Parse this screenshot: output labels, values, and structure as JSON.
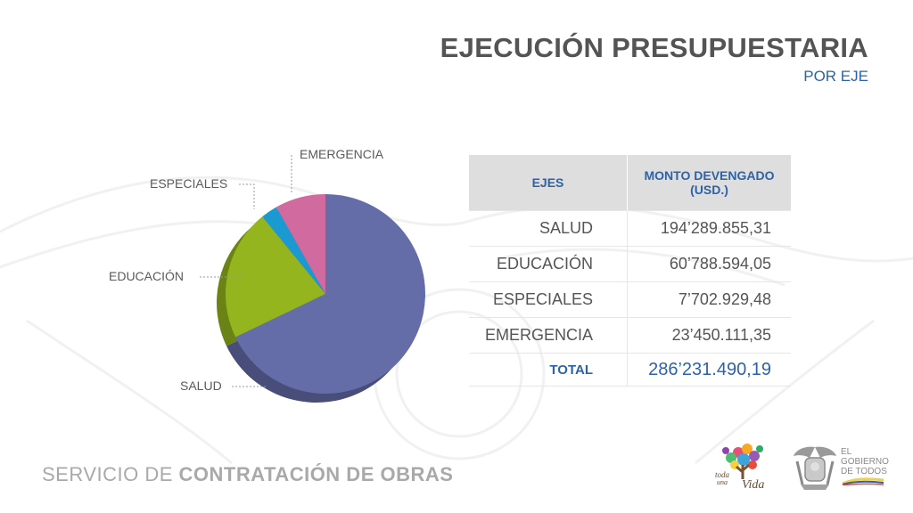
{
  "header": {
    "title": "EJECUCIÓN PRESUPUESTARIA",
    "subtitle": "POR EJE"
  },
  "chart_data": {
    "type": "pie",
    "title": "",
    "slices": [
      {
        "label": "SALUD",
        "value": 194289855.31,
        "color": "#646da8"
      },
      {
        "label": "EDUCACIÓN",
        "value": 60788594.05,
        "color": "#94b51d"
      },
      {
        "label": "ESPECIALES",
        "value": 7702929.48,
        "color": "#1b9ad2"
      },
      {
        "label": "EMERGENCIA",
        "value": 23450111.35,
        "color": "#d16a9e"
      }
    ]
  },
  "table": {
    "col1": "EJES",
    "col2": "MONTO DEVENGADO (USD.)",
    "rows": [
      {
        "axis": "SALUD",
        "amount": "194’289.855,31"
      },
      {
        "axis": "EDUCACIÓN",
        "amount": "60’788.594,05"
      },
      {
        "axis": "ESPECIALES",
        "amount": "7’702.929,48"
      },
      {
        "axis": "EMERGENCIA",
        "amount": "23’450.111,35"
      }
    ],
    "total_label": "TOTAL",
    "total_value": "286’231.490,19"
  },
  "footer": {
    "text_light": "SERVICIO DE ",
    "text_bold": "CONTRATACIÓN DE OBRAS"
  },
  "logos": {
    "vida_line1": "toda",
    "vida_line2": "una",
    "vida_word": "Vida",
    "gov_line1": "EL",
    "gov_line2": "GOBIERNO",
    "gov_line3": "DE TODOS"
  },
  "colors": {
    "accent": "#2e62a8",
    "title": "#545454"
  }
}
